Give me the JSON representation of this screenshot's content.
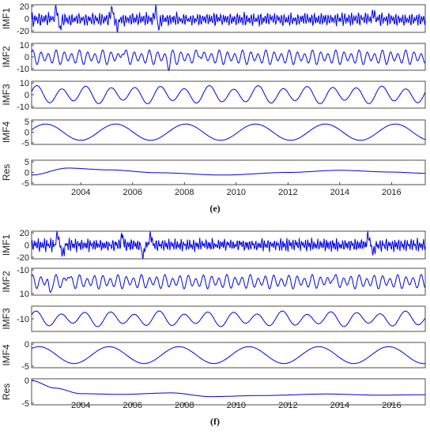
{
  "chart_data": [
    {
      "type": "line",
      "caption": "(e)",
      "x_tick_labels": [
        "2004",
        "2006",
        "2008",
        "2010",
        "2012",
        "2014",
        "2016"
      ],
      "x_range": [
        2002.1,
        2017.3
      ],
      "panels": [
        {
          "ylabel": "IMF1",
          "yticks": [
            "20",
            "0",
            "-20"
          ],
          "ylim": [
            -25,
            28
          ],
          "waves": [
            [
              0.09,
              0.0,
              8.0
            ],
            [
              0.13,
              1.0,
              4.0
            ]
          ],
          "spikes": [
            [
              2003.05,
              22
            ],
            [
              2003.2,
              -18
            ],
            [
              2005.2,
              20
            ],
            [
              2005.4,
              -16
            ],
            [
              2006.9,
              22
            ],
            [
              2007.0,
              -18
            ],
            [
              2015.3,
              14
            ]
          ]
        },
        {
          "ylabel": "IMF2",
          "yticks": [
            "10",
            "0",
            "-10"
          ],
          "ylim": [
            -12,
            13
          ],
          "waves": [
            [
              0.3,
              0.5,
              5.0
            ],
            [
              0.45,
              1.3,
              2.0
            ]
          ],
          "spikes": [
            [
              2005.6,
              8
            ],
            [
              2007.4,
              -7
            ],
            [
              2008.6,
              7
            ]
          ]
        },
        {
          "ylabel": "IMF3",
          "yticks": [
            "10",
            "0",
            "-10"
          ],
          "ylim": [
            -11,
            11
          ],
          "waves": [
            [
              0.95,
              0.2,
              6.0
            ],
            [
              1.7,
              1.0,
              1.5
            ]
          ],
          "spikes": []
        },
        {
          "ylabel": "IMF4",
          "yticks": [
            "5",
            "0",
            "-5"
          ],
          "ylim": [
            -6,
            6
          ],
          "waves": [
            [
              2.7,
              0.3,
              4.0
            ]
          ],
          "spikes": []
        },
        {
          "ylabel": "Res",
          "yticks": [
            "5",
            "0",
            "-5"
          ],
          "ylim": [
            -7,
            7
          ],
          "trend": true,
          "trend_knots": [
            [
              2002.1,
              -1.5
            ],
            [
              2003.5,
              2.5
            ],
            [
              2005.0,
              1.5
            ],
            [
              2007.0,
              -0.2
            ],
            [
              2009.5,
              -1.5
            ],
            [
              2012.0,
              0.0
            ],
            [
              2014.0,
              1.2
            ],
            [
              2016.0,
              0.2
            ],
            [
              2017.3,
              -0.5
            ]
          ]
        }
      ]
    },
    {
      "type": "line",
      "caption": "(f)",
      "x_tick_labels": [
        "2004",
        "2006",
        "2008",
        "2010",
        "2012",
        "2014",
        "2016"
      ],
      "x_range": [
        2002.1,
        2017.3
      ],
      "panels": [
        {
          "ylabel": "IMF1",
          "yticks": [
            "20",
            "0",
            "-20"
          ],
          "ylim": [
            -28,
            22
          ],
          "waves": [
            [
              0.08,
              0.2,
              7.0
            ],
            [
              0.12,
              1.1,
              4.0
            ]
          ],
          "spikes": [
            [
              2003.1,
              20
            ],
            [
              2003.3,
              -18
            ],
            [
              2005.6,
              18
            ],
            [
              2006.4,
              -20
            ],
            [
              2006.7,
              18
            ],
            [
              2015.1,
              20
            ],
            [
              2015.3,
              -16
            ]
          ]
        },
        {
          "ylabel": "IMF2",
          "yticks": [
            "-10",
            "10"
          ],
          "ylim": [
            -14,
            12
          ],
          "waves": [
            [
              0.3,
              0.7,
              5.0
            ],
            [
              0.47,
              1.5,
              2.0
            ]
          ],
          "spikes": [
            [
              2002.8,
              -9
            ],
            [
              2003.5,
              7
            ],
            [
              2013.7,
              7
            ]
          ]
        },
        {
          "ylabel": "IMF3",
          "yticks": [
            "-10"
          ],
          "ylim": [
            -16,
            5
          ],
          "waves": [
            [
              0.95,
              0.4,
              5.0
            ],
            [
              1.6,
              1.1,
              1.5
            ]
          ],
          "spikes": []
        },
        {
          "ylabel": "IMF4",
          "yticks": [
            "0",
            "-5"
          ],
          "ylim": [
            -8,
            1
          ],
          "waves": [
            [
              2.7,
              0.9,
              3.0
            ]
          ],
          "spikes": []
        },
        {
          "ylabel": "Res",
          "yticks": [
            "0",
            "-5"
          ],
          "ylim": [
            -6,
            1
          ],
          "trend": true,
          "trend_knots": [
            [
              2002.1,
              0.5
            ],
            [
              2003.0,
              -1.5
            ],
            [
              2004.0,
              -3.0
            ],
            [
              2005.5,
              -3.2
            ],
            [
              2007.5,
              -2.8
            ],
            [
              2009.0,
              -3.8
            ],
            [
              2011.0,
              -3.5
            ],
            [
              2013.5,
              -3.1
            ],
            [
              2015.5,
              -3.4
            ],
            [
              2017.3,
              -3.3
            ]
          ]
        }
      ]
    }
  ]
}
